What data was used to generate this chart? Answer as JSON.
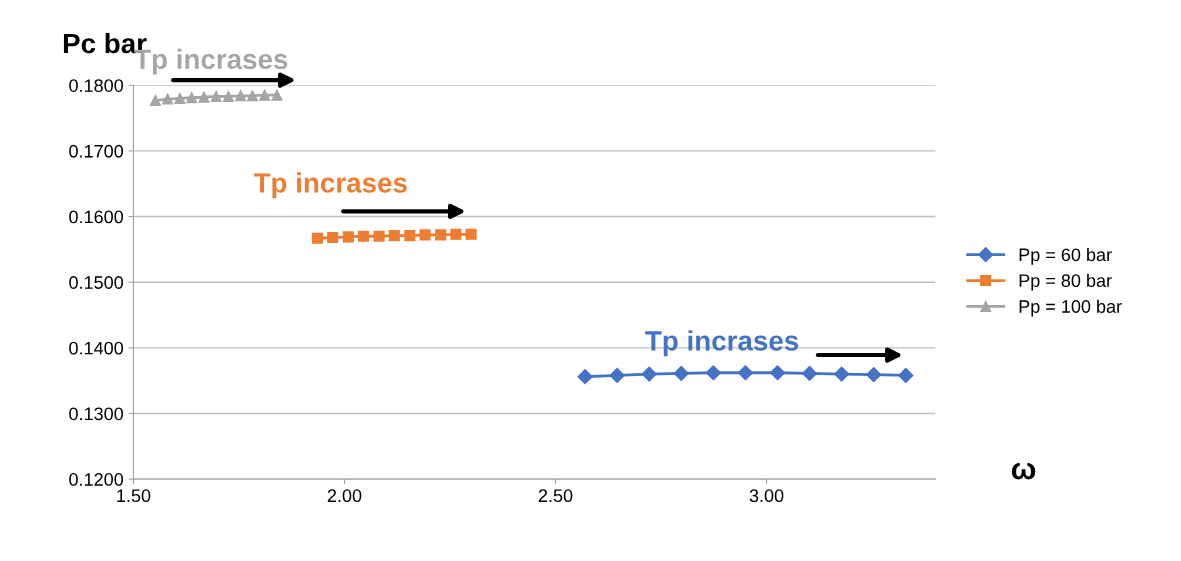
{
  "chart_data": {
    "type": "line",
    "xlabel": "ω",
    "ylabel": "Pc bar",
    "xlim": [
      1.5,
      3.4
    ],
    "xticks": [
      {
        "value": 1.5,
        "label": "1.50"
      },
      {
        "value": 2.0,
        "label": "2.00"
      },
      {
        "value": 2.5,
        "label": "2.50"
      },
      {
        "value": 3.0,
        "label": "3.00"
      }
    ],
    "ylim": [
      0.12,
      0.18
    ],
    "yticks": [
      {
        "value": 0.12,
        "label": "0.1200"
      },
      {
        "value": 0.13,
        "label": "0.1300"
      },
      {
        "value": 0.14,
        "label": "0.1400"
      },
      {
        "value": 0.15,
        "label": "0.1500"
      },
      {
        "value": 0.16,
        "label": "0.1600"
      },
      {
        "value": 0.17,
        "label": "0.1700"
      },
      {
        "value": 0.18,
        "label": "0.1800"
      }
    ],
    "grid": "y",
    "legend": "right",
    "series": [
      {
        "name": "Pp = 60 bar",
        "color": "#4472c4",
        "marker": "diamond",
        "x": [
          2.57,
          2.646,
          2.722,
          2.798,
          2.874,
          2.95,
          3.026,
          3.102,
          3.178,
          3.254,
          3.33
        ],
        "values": [
          0.1356,
          0.1358,
          0.136,
          0.1361,
          0.1362,
          0.1362,
          0.1362,
          0.1361,
          0.136,
          0.1359,
          0.1358
        ]
      },
      {
        "name": "Pp = 80 bar",
        "color": "#ed7d31",
        "marker": "square",
        "x": [
          1.936,
          1.972,
          2.009,
          2.045,
          2.082,
          2.118,
          2.155,
          2.191,
          2.228,
          2.264,
          2.3
        ],
        "values": [
          0.1567,
          0.1568,
          0.1569,
          0.157,
          0.157,
          0.1571,
          0.1571,
          0.1572,
          0.1572,
          0.1573,
          0.1573
        ]
      },
      {
        "name": "Pp = 100 bar",
        "color": "#a5a5a5",
        "marker": "triangle",
        "x": [
          1.552,
          1.581,
          1.61,
          1.638,
          1.667,
          1.696,
          1.725,
          1.754,
          1.782,
          1.811,
          1.84
        ],
        "values": [
          0.1777,
          0.1779,
          0.178,
          0.1781,
          0.1782,
          0.1783,
          0.1783,
          0.1784,
          0.1784,
          0.1785,
          0.1785
        ]
      }
    ],
    "annotations": [
      "Tp incrases",
      "Tp incrases",
      "Tp incrases"
    ]
  }
}
